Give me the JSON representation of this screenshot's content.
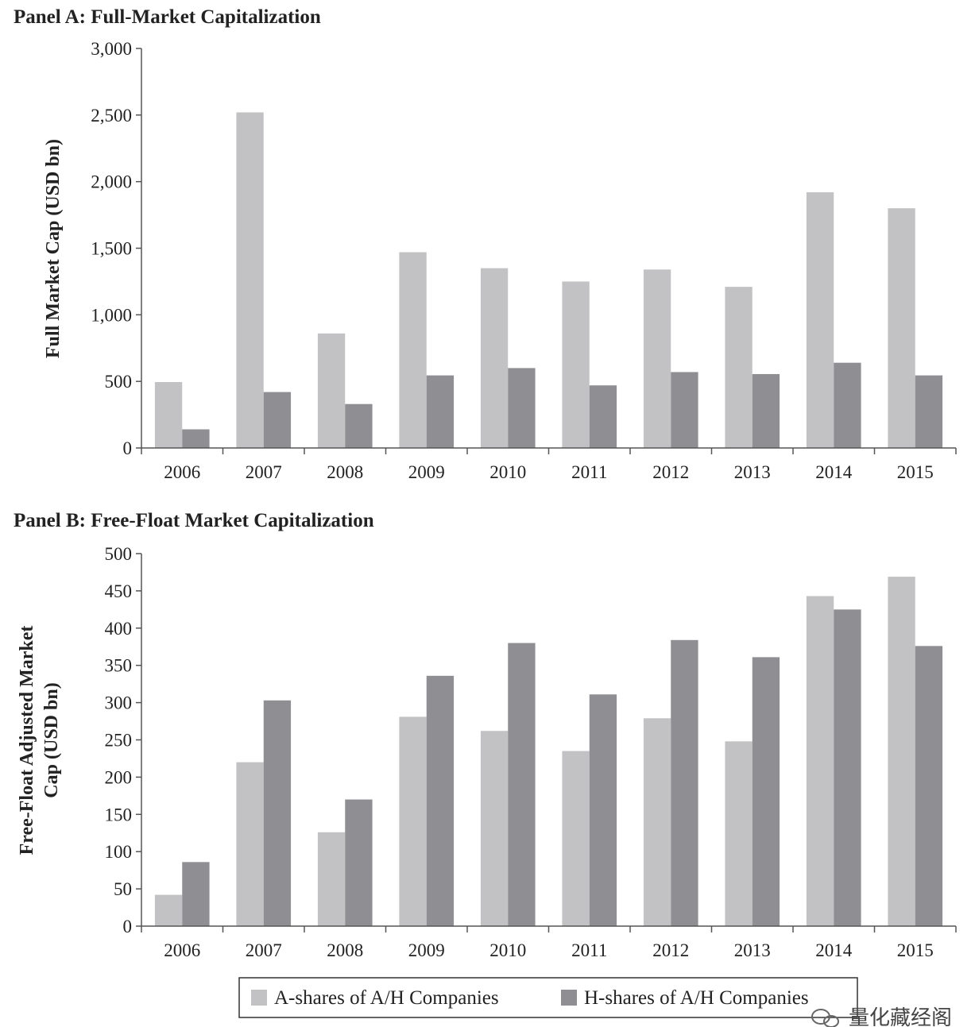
{
  "colors": {
    "a_shares": "#c2c2c4",
    "h_shares": "#8f8f93",
    "axis": "#555555",
    "text": "#222222"
  },
  "chart_data": [
    {
      "type": "bar",
      "title": "Panel A: Full-Market Capitalization",
      "xlabel": "",
      "ylabel": "Full Market Cap (USD bn)",
      "ylim": [
        0,
        3000
      ],
      "yticks": [
        0,
        500,
        1000,
        1500,
        2000,
        2500,
        3000
      ],
      "ytick_labels": [
        "0",
        "500",
        "1,000",
        "1,500",
        "2,000",
        "2,500",
        "3,000"
      ],
      "categories": [
        "2006",
        "2007",
        "2008",
        "2009",
        "2010",
        "2011",
        "2012",
        "2013",
        "2014",
        "2015"
      ],
      "series": [
        {
          "name": "A-shares of A/H Companies",
          "values": [
            495,
            2520,
            860,
            1470,
            1350,
            1250,
            1340,
            1210,
            1920,
            1800
          ]
        },
        {
          "name": "H-shares of A/H Companies",
          "values": [
            140,
            420,
            330,
            545,
            600,
            470,
            570,
            555,
            640,
            545
          ]
        }
      ]
    },
    {
      "type": "bar",
      "title": "Panel B: Free-Float Market Capitalization",
      "xlabel": "",
      "ylabel_lines": [
        "Free-Float Adjusted Market",
        "Cap (USD bn)"
      ],
      "ylim": [
        0,
        500
      ],
      "yticks": [
        0,
        50,
        100,
        150,
        200,
        250,
        300,
        350,
        400,
        450,
        500
      ],
      "ytick_labels": [
        "0",
        "50",
        "100",
        "150",
        "200",
        "250",
        "300",
        "350",
        "400",
        "450",
        "500"
      ],
      "categories": [
        "2006",
        "2007",
        "2008",
        "2009",
        "2010",
        "2011",
        "2012",
        "2013",
        "2014",
        "2015"
      ],
      "series": [
        {
          "name": "A-shares of A/H Companies",
          "values": [
            42,
            220,
            126,
            281,
            262,
            235,
            279,
            248,
            443,
            469
          ]
        },
        {
          "name": "H-shares of A/H Companies",
          "values": [
            86,
            303,
            170,
            336,
            380,
            311,
            384,
            361,
            425,
            376
          ]
        }
      ]
    }
  ],
  "legend": {
    "a_label": "A-shares of A/H Companies",
    "h_label": "H-shares of A/H Companies",
    "placement": "bottom-center"
  },
  "watermark": {
    "text": "量化藏经阁",
    "icon": "wechat-icon"
  }
}
